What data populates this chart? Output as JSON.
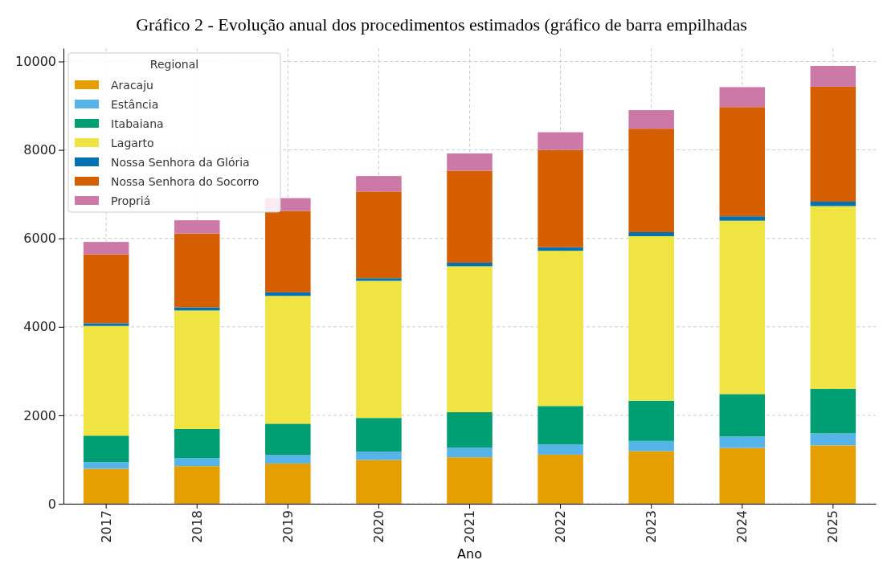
{
  "chart_data": {
    "type": "bar",
    "stacked": true,
    "title": "Gráfico 2 - Evolução anual dos procedimentos estimados (gráfico de barra empilhadas",
    "xlabel": "Ano",
    "legend_title": "Regional",
    "legend": "top left",
    "grid": true,
    "categories": [
      "2017",
      "2018",
      "2019",
      "2020",
      "2021",
      "2022",
      "2023",
      "2024",
      "2025"
    ],
    "ylim": [
      0,
      10300
    ],
    "yticks": [
      0,
      2000,
      4000,
      6000,
      8000,
      10000
    ],
    "series": [
      {
        "name": "Aracaju",
        "color": "#e69f00",
        "values": [
          790,
          850,
          910,
          990,
          1050,
          1110,
          1190,
          1260,
          1320
        ]
      },
      {
        "name": "Estância",
        "color": "#56b4e9",
        "values": [
          150,
          180,
          190,
          190,
          220,
          230,
          230,
          260,
          270
        ]
      },
      {
        "name": "Itabaiana",
        "color": "#009e73",
        "values": [
          600,
          660,
          710,
          760,
          800,
          870,
          910,
          960,
          1010
        ]
      },
      {
        "name": "Lagarto",
        "color": "#f0e442",
        "values": [
          2480,
          2680,
          2890,
          3100,
          3300,
          3510,
          3720,
          3920,
          4130
        ]
      },
      {
        "name": "Nossa Senhora da Glória",
        "color": "#0072b2",
        "values": [
          60,
          70,
          80,
          60,
          80,
          80,
          90,
          100,
          100
        ]
      },
      {
        "name": "Nossa Senhora do Socorro",
        "color": "#d55e00",
        "values": [
          1560,
          1670,
          1840,
          1960,
          2080,
          2200,
          2340,
          2470,
          2600
        ]
      },
      {
        "name": "Propriá",
        "color": "#cc79a7",
        "values": [
          280,
          300,
          290,
          350,
          390,
          400,
          420,
          450,
          470
        ]
      }
    ]
  }
}
